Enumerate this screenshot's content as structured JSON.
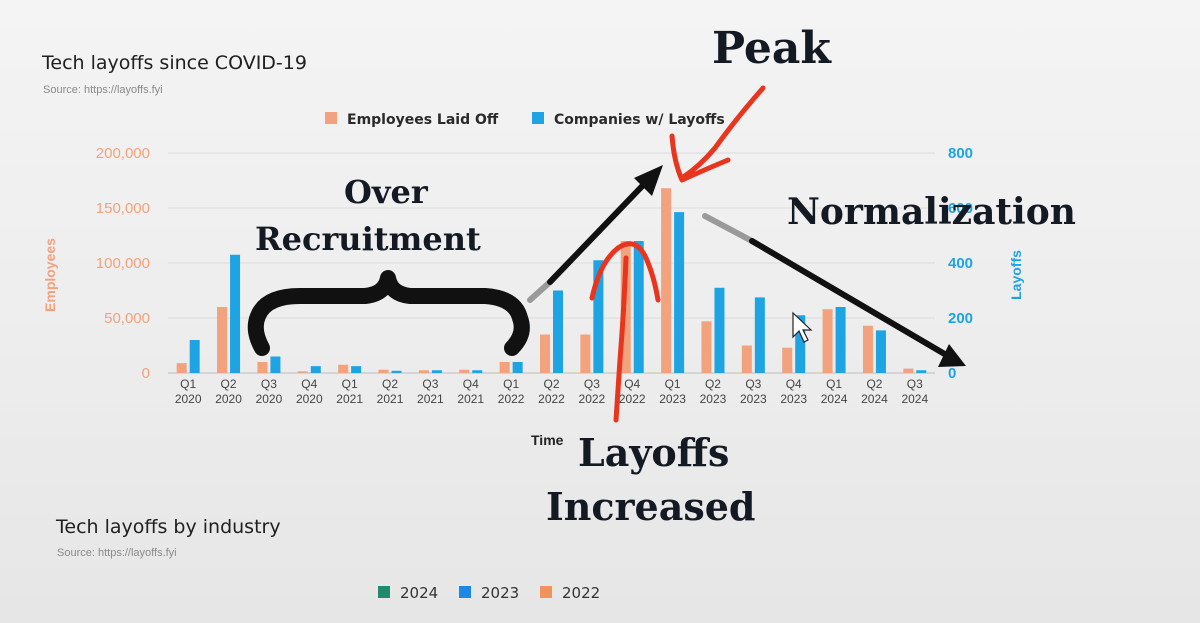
{
  "chart_data": {
    "type": "bar",
    "title": "Tech layoffs since COVID-19",
    "source": "Source: https://layoffs.fyi",
    "xlabel": "Time",
    "ylabel_left": "Employees",
    "ylabel_right": "Layoffs",
    "ylim_left": [
      0,
      200000
    ],
    "ylim_right": [
      0,
      800
    ],
    "yticks_left": [
      "0",
      "50,000",
      "100,000",
      "150,000",
      "200,000"
    ],
    "yticks_right": [
      "0",
      "200",
      "400",
      "600",
      "800"
    ],
    "legend_position": "top-center",
    "grid": true,
    "categories": [
      [
        "Q1",
        "2020"
      ],
      [
        "Q2",
        "2020"
      ],
      [
        "Q3",
        "2020"
      ],
      [
        "Q4",
        "2020"
      ],
      [
        "Q1",
        "2021"
      ],
      [
        "Q2",
        "2021"
      ],
      [
        "Q3",
        "2021"
      ],
      [
        "Q4",
        "2021"
      ],
      [
        "Q1",
        "2022"
      ],
      [
        "Q2",
        "2022"
      ],
      [
        "Q3",
        "2022"
      ],
      [
        "Q4",
        "2022"
      ],
      [
        "Q1",
        "2023"
      ],
      [
        "Q2",
        "2023"
      ],
      [
        "Q3",
        "2023"
      ],
      [
        "Q4",
        "2023"
      ],
      [
        "Q1",
        "2024"
      ],
      [
        "Q2",
        "2024"
      ],
      [
        "Q3",
        "2024"
      ]
    ],
    "series": [
      {
        "name": "Employees Laid Off",
        "axis": "left",
        "color": "#f2a27c",
        "values": [
          9000,
          60000,
          10000,
          1500,
          7500,
          3000,
          2500,
          3000,
          10000,
          35000,
          35000,
          120000,
          168000,
          47000,
          25000,
          23000,
          58000,
          43000,
          4000
        ]
      },
      {
        "name": "Companies w/ Layoffs",
        "axis": "right",
        "color": "#1ea3e3",
        "values": [
          120,
          430,
          60,
          25,
          25,
          8,
          10,
          10,
          40,
          300,
          410,
          480,
          585,
          310,
          275,
          210,
          240,
          155,
          10
        ]
      }
    ]
  },
  "annotations": {
    "peak": "Peak",
    "over_line1": "Over",
    "over_line2": "Recruitment",
    "normalization": "Normalization",
    "layoffs_line1": "Layoffs",
    "layoffs_line2": "Increased"
  },
  "second_chart": {
    "title": "Tech layoffs by industry",
    "source": "Source: https://layoffs.fyi",
    "legend": [
      {
        "name": "2024",
        "color": "#1f8a6e"
      },
      {
        "name": "2023",
        "color": "#1e88e5"
      },
      {
        "name": "2022",
        "color": "#f0925c"
      }
    ]
  }
}
